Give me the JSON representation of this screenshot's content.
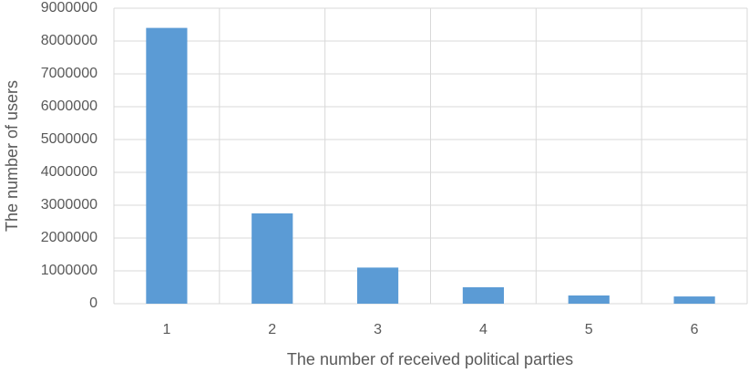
{
  "chart_data": {
    "type": "bar",
    "x_label": "The number of received political parties",
    "y_label": "The number of users",
    "categories": [
      "1",
      "2",
      "3",
      "4",
      "5",
      "6"
    ],
    "values": [
      8400000,
      2750000,
      1100000,
      500000,
      250000,
      220000
    ],
    "color": "#5b9bd5",
    "ylim": [
      0,
      9000000
    ],
    "yticks": [
      0,
      1000000,
      2000000,
      3000000,
      4000000,
      5000000,
      6000000,
      7000000,
      8000000,
      9000000
    ],
    "grid": true
  }
}
